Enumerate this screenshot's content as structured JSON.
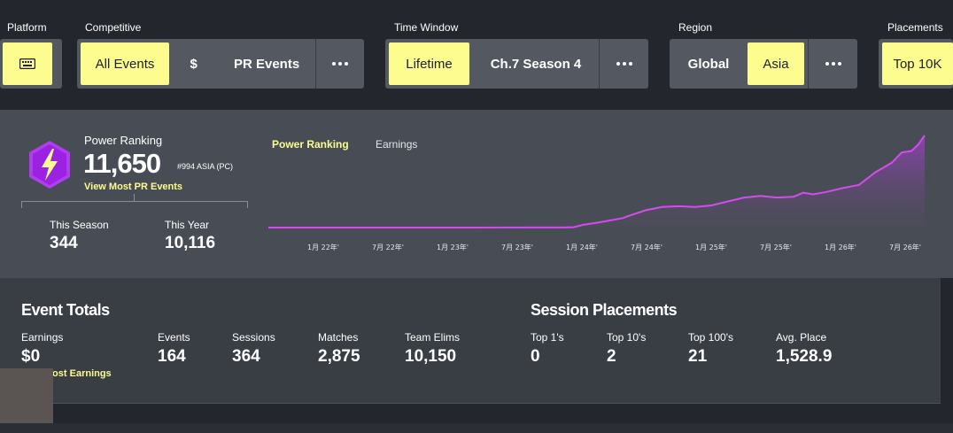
{
  "filters": {
    "platform": {
      "label": "Platform",
      "icon": "keyboard-icon"
    },
    "competitive": {
      "label": "Competitive",
      "options": [
        "All Events",
        "$",
        "PR Events"
      ]
    },
    "time_window": {
      "label": "Time Window",
      "options": [
        "Lifetime",
        "Ch.7 Season 4"
      ]
    },
    "region": {
      "label": "Region",
      "options": [
        "Global",
        "Asia"
      ]
    },
    "placements": {
      "label": "Placements",
      "options": [
        "Top 10K"
      ]
    }
  },
  "power_ranking": {
    "title": "Power Ranking",
    "value": "11,650",
    "rank": "#994 ASIA (PC)",
    "link": "View Most PR Events",
    "this_season_label": "This Season",
    "this_season_value": "344",
    "this_year_label": "This Year",
    "this_year_value": "10,116",
    "icon_color": "#b23cf0"
  },
  "chart_tabs": [
    "Power Ranking",
    "Earnings"
  ],
  "chart_data": {
    "type": "area",
    "title": "",
    "xlabel": "",
    "ylabel": "",
    "x_ticks": [
      "1月 22年'",
      "7月 22年'",
      "1月 23年'",
      "7月 23年'",
      "1月 24年'",
      "7月 24年'",
      "1月 25年'",
      "7月 25年'",
      "1月 26年'",
      "7月 26年'"
    ],
    "x": [
      0,
      2,
      4,
      6,
      8,
      9,
      9.3,
      9.6,
      10,
      10.4,
      10.8,
      11,
      11.5,
      12,
      12.5,
      13,
      13.5,
      14,
      14.5,
      15,
      15.5,
      16,
      16.3,
      16.6,
      17,
      17.5,
      18,
      18.5,
      19,
      19.3,
      19.6,
      19.8,
      20
    ],
    "y": [
      0,
      0,
      0,
      5,
      10,
      10,
      40,
      350,
      600,
      900,
      1200,
      1500,
      2200,
      2600,
      2700,
      2600,
      2800,
      3300,
      3800,
      4000,
      3800,
      3900,
      4400,
      4200,
      4500,
      5000,
      5400,
      7000,
      8200,
      9500,
      9700,
      10500,
      11650
    ],
    "series_color": "#d24cf0",
    "ylim": [
      0,
      11650
    ],
    "grid": false
  },
  "event_totals": {
    "title": "Event Totals",
    "earnings_label": "Earnings",
    "earnings_value": "$0",
    "earnings_link": "lost Earnings",
    "events_label": "Events",
    "events_value": "164",
    "sessions_label": "Sessions",
    "sessions_value": "364",
    "matches_label": "Matches",
    "matches_value": "2,875",
    "elims_label": "Team Elims",
    "elims_value": "10,150"
  },
  "session_placements": {
    "title": "Session Placements",
    "top1_label": "Top 1's",
    "top1_value": "0",
    "top10_label": "Top 10's",
    "top10_value": "2",
    "top100_label": "Top 100's",
    "top100_value": "21",
    "avg_label": "Avg. Place",
    "avg_value": "1,528.9"
  }
}
